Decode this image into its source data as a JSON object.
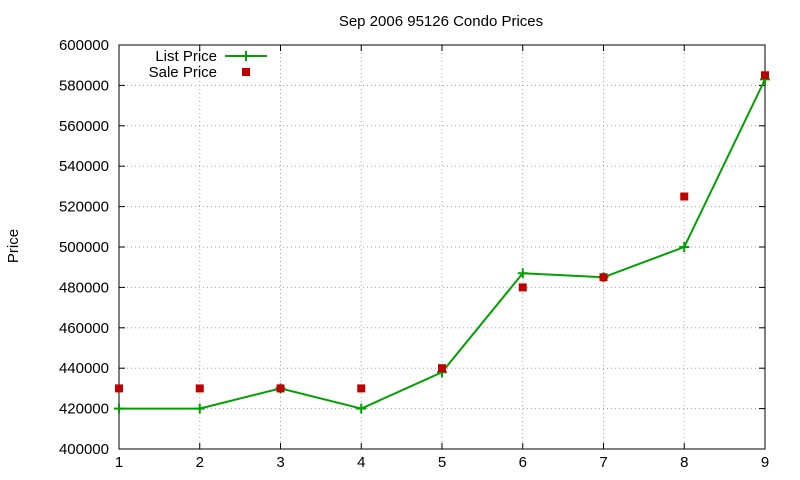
{
  "chart_data": {
    "type": "line",
    "title": "Sep 2006 95126 Condo Prices",
    "xlabel": "",
    "ylabel": "Price",
    "x": [
      1,
      2,
      3,
      4,
      5,
      6,
      7,
      8,
      9
    ],
    "xlim": [
      1,
      9
    ],
    "ylim": [
      400000,
      600000
    ],
    "x_ticks": [
      "1",
      "2",
      "3",
      "4",
      "5",
      "6",
      "7",
      "8",
      "9"
    ],
    "y_ticks": [
      "400000",
      "420000",
      "440000",
      "460000",
      "480000",
      "500000",
      "520000",
      "540000",
      "560000",
      "580000",
      "600000"
    ],
    "grid": true,
    "legend_position": "top-left",
    "series": [
      {
        "name": "List Price",
        "kind": "line-with-plus-markers",
        "color": "#00a000",
        "values": [
          420000,
          420000,
          430000,
          420000,
          438000,
          487000,
          485000,
          500000,
          583000
        ]
      },
      {
        "name": "Sale Price",
        "kind": "square-points",
        "color": "#c00000",
        "values": [
          430000,
          430000,
          430000,
          430000,
          440000,
          480000,
          485000,
          525000,
          585000
        ]
      }
    ]
  }
}
